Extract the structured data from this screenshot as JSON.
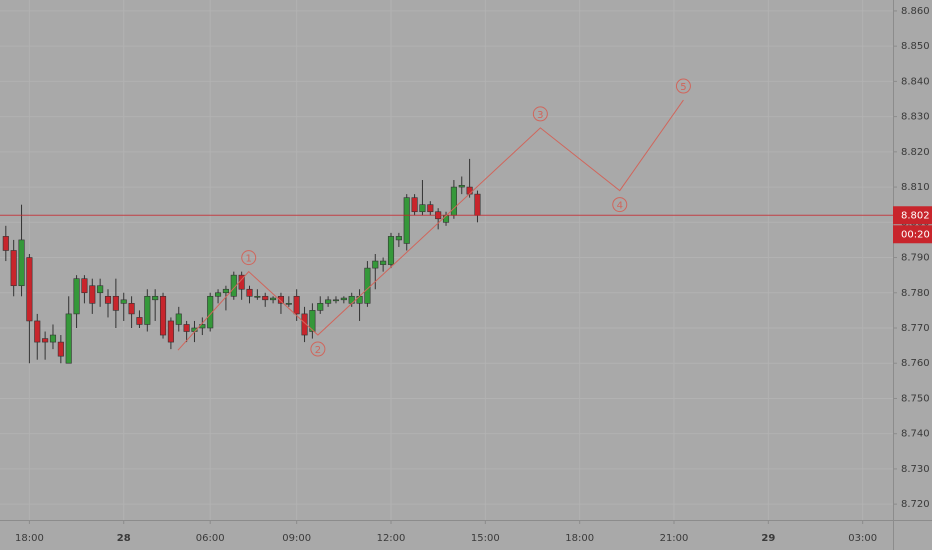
{
  "chart_data": {
    "type": "candlestick",
    "x": [
      -3,
      -2,
      -1,
      0,
      1,
      2,
      3,
      4,
      5,
      6,
      7,
      8,
      9,
      10,
      11,
      12,
      13,
      14,
      15,
      16,
      17,
      18,
      19,
      20,
      21,
      22,
      23,
      24,
      25,
      26,
      27,
      28,
      29,
      30,
      31,
      32,
      33,
      34,
      35,
      36,
      37,
      38,
      39,
      40,
      41,
      42,
      43,
      44,
      45,
      46,
      47,
      48,
      49,
      50,
      51,
      52,
      53,
      54,
      55,
      56,
      57
    ],
    "open": [
      8.796,
      8.792,
      8.782,
      8.79,
      8.772,
      8.767,
      8.766,
      8.766,
      8.76,
      8.774,
      8.784,
      8.782,
      8.78,
      8.779,
      8.779,
      8.777,
      8.777,
      8.773,
      8.771,
      8.778,
      8.779,
      8.772,
      8.771,
      8.771,
      8.769,
      8.77,
      8.77,
      8.779,
      8.78,
      8.779,
      8.785,
      8.781,
      8.779,
      8.779,
      8.778,
      8.779,
      8.777,
      8.779,
      8.774,
      8.769,
      8.775,
      8.777,
      8.778,
      8.778,
      8.777,
      8.777,
      8.777,
      8.787,
      8.788,
      8.788,
      8.795,
      8.794,
      8.807,
      8.803,
      8.805,
      8.803,
      8.8,
      8.802,
      8.81,
      8.81,
      8.808
    ],
    "high": [
      8.799,
      8.795,
      8.805,
      8.791,
      8.774,
      8.769,
      8.771,
      8.768,
      8.779,
      8.785,
      8.785,
      8.784,
      8.784,
      8.781,
      8.784,
      8.78,
      8.779,
      8.775,
      8.781,
      8.781,
      8.78,
      8.773,
      8.776,
      8.772,
      8.772,
      8.773,
      8.78,
      8.781,
      8.782,
      8.786,
      8.786,
      8.782,
      8.781,
      8.78,
      8.779,
      8.78,
      8.779,
      8.781,
      8.776,
      8.777,
      8.779,
      8.779,
      8.779,
      8.779,
      8.78,
      8.781,
      8.789,
      8.791,
      8.79,
      8.797,
      8.797,
      8.808,
      8.808,
      8.812,
      8.806,
      8.804,
      8.803,
      8.812,
      8.813,
      8.818,
      8.809
    ],
    "low": [
      8.789,
      8.779,
      8.779,
      8.76,
      8.761,
      8.761,
      8.764,
      8.76,
      8.76,
      8.77,
      8.777,
      8.774,
      8.776,
      8.773,
      8.77,
      8.772,
      8.77,
      8.77,
      8.769,
      8.772,
      8.767,
      8.764,
      8.769,
      8.766,
      8.766,
      8.768,
      8.769,
      8.777,
      8.775,
      8.778,
      8.778,
      8.777,
      8.778,
      8.776,
      8.777,
      8.774,
      8.776,
      8.772,
      8.766,
      8.767,
      8.774,
      8.776,
      8.777,
      8.777,
      8.776,
      8.772,
      8.776,
      8.781,
      8.786,
      8.787,
      8.793,
      8.792,
      8.802,
      8.802,
      8.802,
      8.798,
      8.799,
      8.801,
      8.808,
      8.807,
      8.8
    ],
    "close": [
      8.792,
      8.782,
      8.795,
      8.772,
      8.766,
      8.766,
      8.768,
      8.762,
      8.774,
      8.784,
      8.78,
      8.777,
      8.782,
      8.777,
      8.775,
      8.778,
      8.774,
      8.771,
      8.779,
      8.779,
      8.768,
      8.766,
      8.774,
      8.769,
      8.77,
      8.771,
      8.779,
      8.78,
      8.781,
      8.785,
      8.781,
      8.779,
      8.779,
      8.778,
      8.7785,
      8.777,
      8.777,
      8.774,
      8.768,
      8.775,
      8.777,
      8.778,
      8.778,
      8.7785,
      8.779,
      8.779,
      8.787,
      8.789,
      8.789,
      8.796,
      8.796,
      8.807,
      8.803,
      8.805,
      8.803,
      8.801,
      8.802,
      8.81,
      8.8105,
      8.808,
      8.802
    ],
    "up_color": "#35983a",
    "down_color": "#c8252c",
    "xlim": [
      -3.74,
      109.86
    ],
    "xticks": [
      {
        "value": 0,
        "label": "18:00"
      },
      {
        "value": 12,
        "label": "28"
      },
      {
        "value": 23,
        "label": "06:00"
      },
      {
        "value": 34,
        "label": "09:00"
      },
      {
        "value": 46,
        "label": "12:00"
      },
      {
        "value": 58,
        "label": "15:00"
      },
      {
        "value": 70,
        "label": "18:00"
      },
      {
        "value": 82,
        "label": "21:00"
      },
      {
        "value": 94,
        "label": "29"
      },
      {
        "value": 106,
        "label": "03:00"
      }
    ],
    "ylim": [
      8.7155,
      8.8631
    ],
    "yticks": [
      {
        "value": 8.72,
        "label": "8.720"
      },
      {
        "value": 8.73,
        "label": "8.730"
      },
      {
        "value": 8.74,
        "label": "8.740"
      },
      {
        "value": 8.75,
        "label": "8.750"
      },
      {
        "value": 8.76,
        "label": "8.760"
      },
      {
        "value": 8.77,
        "label": "8.770"
      },
      {
        "value": 8.78,
        "label": "8.780"
      },
      {
        "value": 8.79,
        "label": "8.790"
      },
      {
        "value": 8.8,
        "label": "8.800"
      },
      {
        "value": 8.81,
        "label": "8.810"
      },
      {
        "value": 8.82,
        "label": "8.820"
      },
      {
        "value": 8.83,
        "label": "8.830"
      },
      {
        "value": 8.84,
        "label": "8.840"
      },
      {
        "value": 8.85,
        "label": "8.850"
      },
      {
        "value": 8.86,
        "label": "8.860"
      }
    ],
    "grid": true,
    "last_price": 8.802,
    "countdown": "00:20",
    "wave": {
      "x": [
        18.9,
        27.9,
        36.7,
        65,
        75.1,
        83.2
      ],
      "y": [
        8.7637,
        8.786,
        8.768,
        8.8268,
        8.809,
        8.8347
      ],
      "labels": [
        null,
        "1",
        "2",
        "3",
        "4",
        "5"
      ],
      "color": "#d0665c"
    }
  }
}
